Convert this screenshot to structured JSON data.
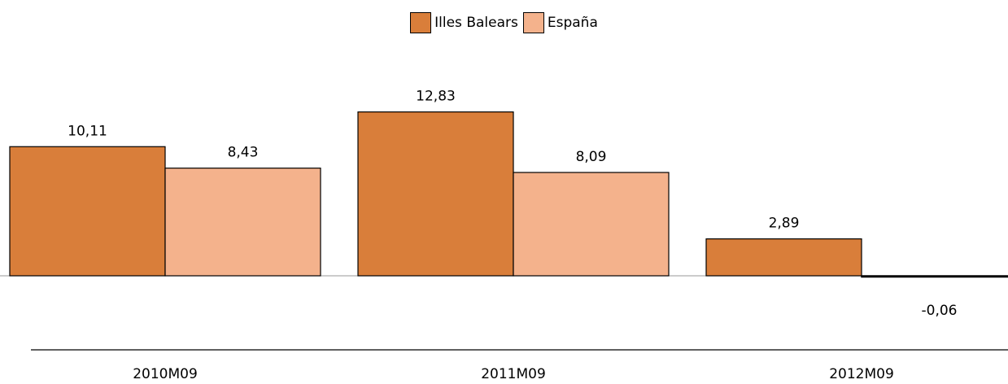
{
  "chart_data": {
    "type": "bar",
    "categories": [
      "2010M09",
      "2011M09",
      "2012M09"
    ],
    "series": [
      {
        "name": "Illes Balears",
        "values": [
          10.11,
          12.83,
          2.89
        ],
        "labels": [
          "10,11",
          "12,83",
          "2,89"
        ],
        "color": "#D97E3A"
      },
      {
        "name": "España",
        "values": [
          8.43,
          8.09,
          -0.06
        ],
        "labels": [
          "8,43",
          "8,09",
          "-0,06"
        ],
        "color": "#F4B28C"
      }
    ],
    "legend_position": "top-center",
    "grid": false
  }
}
